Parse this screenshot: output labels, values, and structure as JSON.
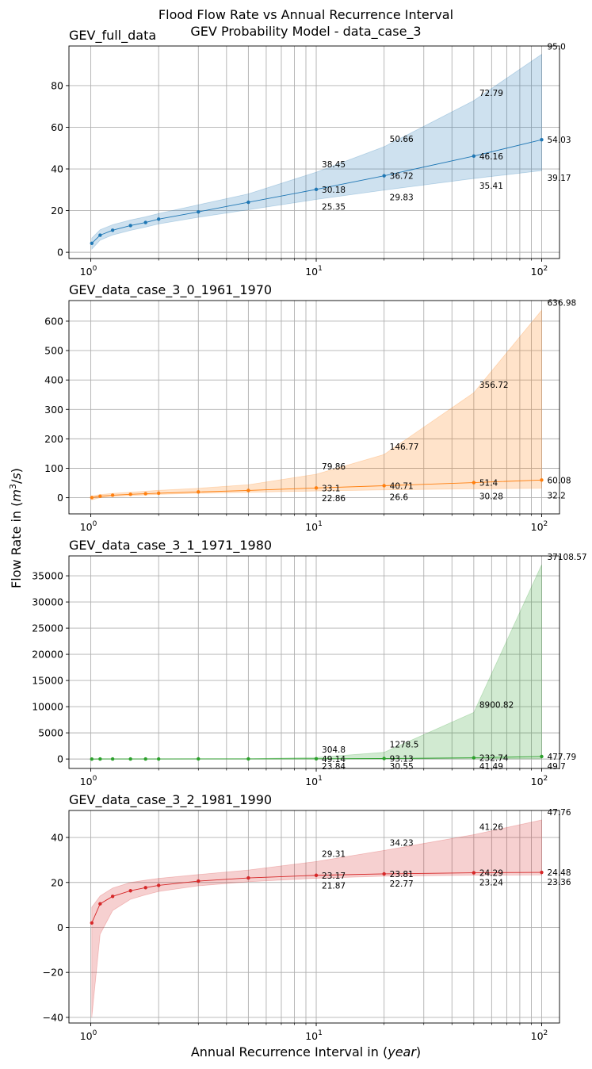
{
  "figure": {
    "suptitle_line1": "Flood Flow Rate vs Annual Recurrence Interval",
    "suptitle_line2": "GEV Probability Model - data_case_3",
    "xlabel": "Annual Recurrence Interval in (year)",
    "ylabel": "Flow Rate in (m³/s)"
  },
  "chart_data": [
    {
      "type": "line",
      "title": "GEV_full_data",
      "color": "#1f77b4",
      "x_scale": "log",
      "xlim": [
        0.8,
        120
      ],
      "ylim": [
        -3,
        99
      ],
      "yticks": [
        0,
        20,
        40,
        60,
        80
      ],
      "grid": true,
      "x": [
        1.01,
        1.1,
        1.25,
        1.5,
        1.75,
        2,
        3,
        5,
        10,
        20,
        50,
        100
      ],
      "series": [
        {
          "role": "estimate",
          "values": [
            4.3,
            8.2,
            10.6,
            12.8,
            14.3,
            15.9,
            19.4,
            24.0,
            30.18,
            36.72,
            46.16,
            54.03
          ]
        },
        {
          "role": "upper",
          "values": [
            6.8,
            10.8,
            13.2,
            15.5,
            17.0,
            18.6,
            22.8,
            28.0,
            38.45,
            50.66,
            72.79,
            95.0
          ]
        },
        {
          "role": "lower",
          "values": [
            1.5,
            5.8,
            8.3,
            10.5,
            12.1,
            13.6,
            16.8,
            20.4,
            25.35,
            29.83,
            35.41,
            39.17
          ]
        }
      ],
      "labels_x": [
        10,
        20,
        50,
        100
      ],
      "labels": {
        "estimate": [
          "30.18",
          "36.72",
          "46.16",
          "54.03"
        ],
        "upper": [
          "38.45",
          "50.66",
          "72.79",
          "95.0"
        ],
        "lower": [
          "25.35",
          "29.83",
          "35.41",
          "39.17"
        ]
      }
    },
    {
      "type": "line",
      "title": "GEV_data_case_3_0_1961_1970",
      "color": "#ff7f0e",
      "x_scale": "log",
      "xlim": [
        0.8,
        120
      ],
      "ylim": [
        -55,
        670
      ],
      "yticks": [
        0,
        100,
        200,
        300,
        400,
        500,
        600
      ],
      "grid": true,
      "x": [
        1.01,
        1.1,
        1.25,
        1.5,
        1.75,
        2,
        3,
        5,
        10,
        20,
        50,
        100
      ],
      "series": [
        {
          "role": "estimate",
          "values": [
            0.5,
            5.0,
            8.5,
            11.5,
            13.5,
            15.3,
            19.5,
            24.8,
            33.1,
            40.71,
            51.4,
            60.08
          ]
        },
        {
          "role": "upper",
          "values": [
            5.5,
            10.5,
            14.5,
            18.5,
            22.0,
            25.0,
            32.0,
            44.0,
            79.86,
            146.77,
            356.72,
            636.98
          ]
        },
        {
          "role": "lower",
          "values": [
            -7.0,
            0.0,
            4.0,
            7.5,
            9.5,
            11.5,
            15.0,
            18.5,
            22.86,
            26.6,
            30.28,
            32.2
          ]
        }
      ],
      "labels_x": [
        10,
        20,
        50,
        100
      ],
      "labels": {
        "estimate": [
          "33.1",
          "40.71",
          "51.4",
          "60.08"
        ],
        "upper": [
          "79.86",
          "146.77",
          "356.72",
          "636.98"
        ],
        "lower": [
          "22.86",
          "26.6",
          "30.28",
          "32.2"
        ]
      }
    },
    {
      "type": "line",
      "title": "GEV_data_case_3_1_1971_1980",
      "color": "#2ca02c",
      "x_scale": "log",
      "xlim": [
        0.8,
        120
      ],
      "ylim": [
        -1800,
        38800
      ],
      "yticks": [
        0,
        5000,
        10000,
        15000,
        20000,
        25000,
        30000,
        35000
      ],
      "grid": true,
      "x": [
        1.01,
        1.1,
        1.25,
        1.5,
        1.75,
        2,
        3,
        5,
        10,
        20,
        50,
        100
      ],
      "series": [
        {
          "role": "estimate",
          "values": [
            -5,
            2,
            7,
            10,
            13,
            15,
            21,
            29,
            49.14,
            93.13,
            232.74,
            477.79
          ]
        },
        {
          "role": "upper",
          "values": [
            3,
            8,
            13,
            18,
            22,
            25,
            35,
            55,
            304.8,
            1278.5,
            8900.82,
            37108.57
          ]
        },
        {
          "role": "lower",
          "values": [
            -15,
            -5,
            2,
            6,
            8,
            10,
            13,
            17,
            23.84,
            30.55,
            41.49,
            49.7
          ]
        }
      ],
      "labels_x": [
        10,
        20,
        50,
        100
      ],
      "labels": {
        "estimate": [
          "49.14",
          "93.13",
          "232.74",
          "477.79"
        ],
        "upper": [
          "304.8",
          "1278.5",
          "8900.82",
          "37108.57"
        ],
        "lower": [
          "23.84",
          "30.55",
          "41.49",
          "49.7"
        ]
      }
    },
    {
      "type": "line",
      "title": "GEV_data_case_3_2_1981_1990",
      "color": "#d62728",
      "x_scale": "log",
      "xlim": [
        0.8,
        120
      ],
      "ylim": [
        -42.5,
        52
      ],
      "yticks": [
        -40,
        -20,
        0,
        20,
        40
      ],
      "grid": true,
      "x": [
        1.01,
        1.1,
        1.25,
        1.5,
        1.75,
        2,
        3,
        5,
        10,
        20,
        50,
        100
      ],
      "series": [
        {
          "role": "estimate",
          "values": [
            2.0,
            10.5,
            13.8,
            16.3,
            17.7,
            18.7,
            20.6,
            22.0,
            23.17,
            23.81,
            24.29,
            24.48
          ]
        },
        {
          "role": "upper",
          "values": [
            9.0,
            14.0,
            17.5,
            20.0,
            21.0,
            21.8,
            23.5,
            25.5,
            29.31,
            34.23,
            41.26,
            47.76
          ]
        },
        {
          "role": "lower",
          "values": [
            -40.0,
            -3.0,
            7.5,
            12.5,
            14.5,
            16.0,
            18.5,
            20.3,
            21.87,
            22.77,
            23.24,
            23.36
          ]
        }
      ],
      "labels_x": [
        10,
        20,
        50,
        100
      ],
      "labels": {
        "estimate": [
          "23.17",
          "23.81",
          "24.29",
          "24.48"
        ],
        "upper": [
          "29.31",
          "34.23",
          "41.26",
          "47.76"
        ],
        "lower": [
          "21.87",
          "22.77",
          "23.24",
          "23.36"
        ]
      }
    }
  ]
}
